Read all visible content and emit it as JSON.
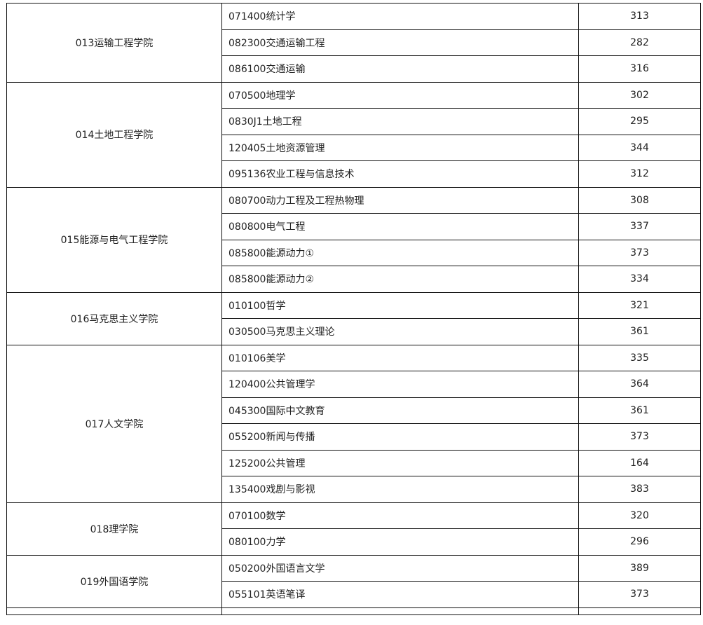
{
  "groups": [
    {
      "college": "013运输工程学院",
      "rows": [
        {
          "major": "071400统计学",
          "score": "313"
        },
        {
          "major": "082300交通运输工程",
          "score": "282"
        },
        {
          "major": "086100交通运输",
          "score": "316"
        }
      ]
    },
    {
      "college": "014土地工程学院",
      "rows": [
        {
          "major": "070500地理学",
          "score": "302"
        },
        {
          "major": "0830J1土地工程",
          "score": "295"
        },
        {
          "major": "120405土地资源管理",
          "score": "344"
        },
        {
          "major": "095136农业工程与信息技术",
          "score": "312"
        }
      ]
    },
    {
      "college": "015能源与电气工程学院",
      "rows": [
        {
          "major": "080700动力工程及工程热物理",
          "score": "308"
        },
        {
          "major": "080800电气工程",
          "score": "337"
        },
        {
          "major": "085800能源动力①",
          "score": "373"
        },
        {
          "major": "085800能源动力②",
          "score": "334"
        }
      ]
    },
    {
      "college": "016马克思主义学院",
      "rows": [
        {
          "major": "010100哲学",
          "score": "321"
        },
        {
          "major": "030500马克思主义理论",
          "score": "361"
        }
      ]
    },
    {
      "college": "017人文学院",
      "rows": [
        {
          "major": "010106美学",
          "score": "335"
        },
        {
          "major": "120400公共管理学",
          "score": "364"
        },
        {
          "major": "045300国际中文教育",
          "score": "361"
        },
        {
          "major": "055200新闻与传播",
          "score": "373"
        },
        {
          "major": "125200公共管理",
          "score": "164"
        },
        {
          "major": "135400戏剧与影视",
          "score": "383"
        }
      ]
    },
    {
      "college": "018理学院",
      "rows": [
        {
          "major": "070100数学",
          "score": "320"
        },
        {
          "major": "080100力学",
          "score": "296"
        }
      ]
    },
    {
      "college": "019外国语学院",
      "rows": [
        {
          "major": "050200外国语言文学",
          "score": "389"
        },
        {
          "major": "055101英语笔译",
          "score": "373"
        }
      ]
    }
  ]
}
